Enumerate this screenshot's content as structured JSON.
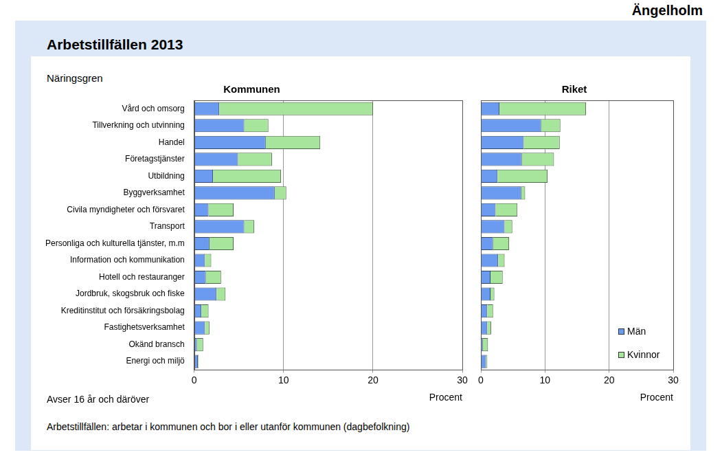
{
  "page": {
    "header": "Ängelholm",
    "title": "Arbetstillfällen 2013",
    "notes": [
      "Avser 16 år och däröver",
      "Arbetstillfällen: arbetar i kommunen och bor i eller utanför kommunen (dagbefolkning)"
    ]
  },
  "chart_data": [
    {
      "type": "bar",
      "title": "Kommunen",
      "orientation": "horizontal",
      "stacked": true,
      "grid": true,
      "y_label": "Näringsgren",
      "x_label": "Procent",
      "categories": [
        "Vård och omsorg",
        "Tillverkning och utvinning",
        "Handel",
        "Företagstjänster",
        "Utbildning",
        "Byggverksamhet",
        "Civila myndigheter och försvaret",
        "Transport",
        "Personliga och kulturella tjänster, m.m",
        "Information och kommunikation",
        "Hotell och restauranger",
        "Jordbruk, skogsbruk och fiske",
        "Kreditinstitut och försäkringsbolag",
        "Fastighetsverksamhet",
        "Okänd bransch",
        "Energi och miljö"
      ],
      "series": [
        {
          "name": "Män",
          "color": "#6b9bf0",
          "values": [
            2.8,
            5.6,
            8.0,
            4.9,
            2.1,
            9.0,
            1.6,
            5.6,
            1.7,
            1.2,
            1.3,
            2.5,
            0.8,
            1.2,
            0.3,
            0.4
          ]
        },
        {
          "name": "Kvinnor",
          "color": "#a8e59c",
          "values": [
            17.2,
            2.7,
            6.1,
            3.8,
            7.6,
            1.3,
            2.8,
            1.1,
            2.7,
            0.7,
            1.7,
            1.0,
            0.8,
            0.5,
            0.7,
            0.1
          ]
        }
      ],
      "xlim": [
        0,
        30
      ],
      "xticks": [
        0,
        10,
        20,
        30
      ]
    },
    {
      "type": "bar",
      "title": "Riket",
      "orientation": "horizontal",
      "stacked": true,
      "grid": true,
      "x_label": "Procent",
      "tick_labels": "x",
      "legend": "lower right",
      "categories": [
        "Vård och omsorg",
        "Tillverkning och utvinning",
        "Handel",
        "Företagstjänster",
        "Utbildning",
        "Byggverksamhet",
        "Civila myndigheter och försvaret",
        "Transport",
        "Personliga och kulturella tjänster, m.m",
        "Information och kommunikation",
        "Hotell och restauranger",
        "Jordbruk, skogsbruk och fiske",
        "Kreditinstitut och försäkringsbolag",
        "Fastighetsverksamhet",
        "Okänd bransch",
        "Energi och miljö"
      ],
      "series": [
        {
          "name": "Män",
          "color": "#6b9bf0",
          "values": [
            2.9,
            9.4,
            6.7,
            6.4,
            2.6,
            6.3,
            2.3,
            3.7,
            1.9,
            2.7,
            1.5,
            1.5,
            1.0,
            1.0,
            0.3,
            0.8
          ]
        },
        {
          "name": "Kvinnor",
          "color": "#a8e59c",
          "values": [
            13.5,
            3.0,
            5.6,
            5.0,
            7.8,
            0.6,
            3.4,
            1.2,
            2.5,
            1.0,
            1.9,
            0.6,
            0.9,
            0.6,
            0.8,
            0.2
          ]
        }
      ],
      "xlim": [
        0,
        30
      ],
      "xticks": [
        0,
        10,
        20,
        30
      ]
    }
  ]
}
